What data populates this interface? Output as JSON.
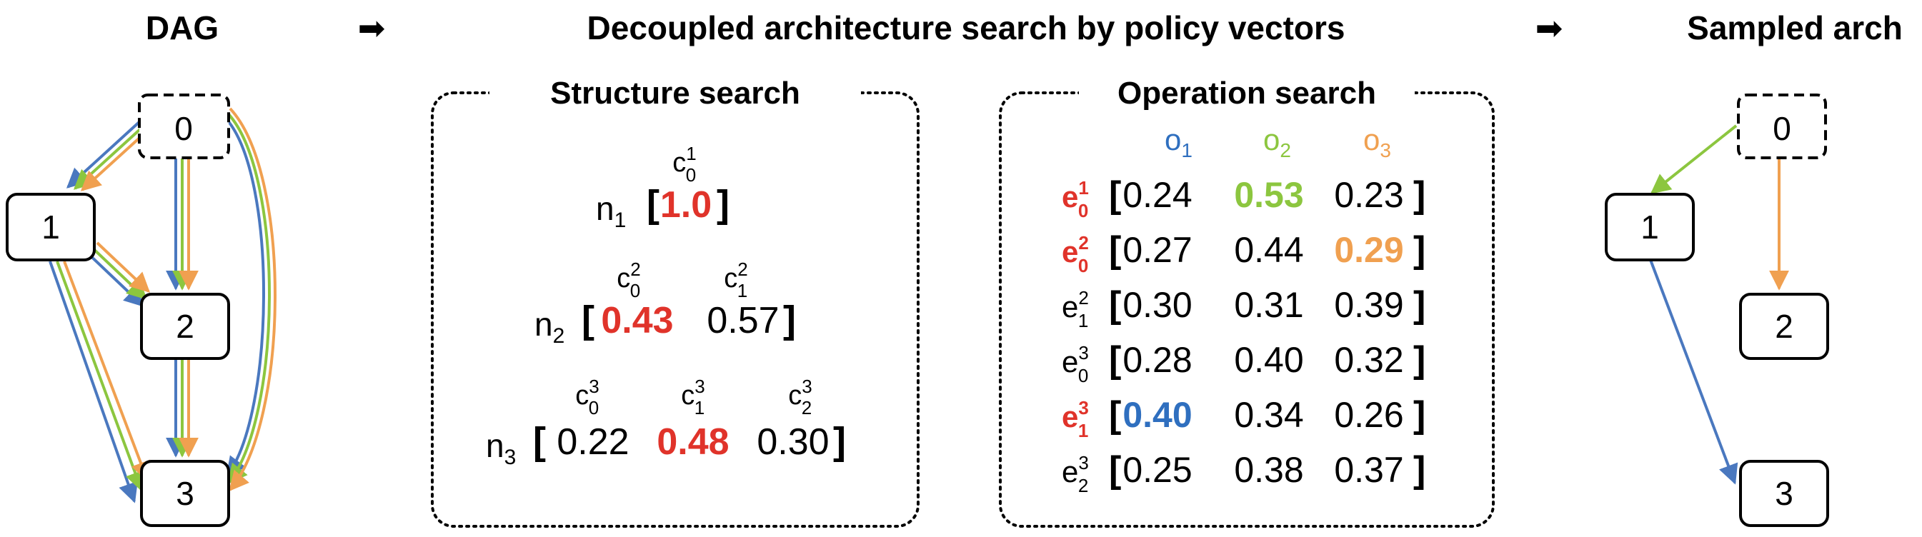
{
  "headers": {
    "dag": "DAG",
    "main": "Decoupled architecture search by policy vectors",
    "sampled": "Sampled arch",
    "arrow": "➡"
  },
  "colors": {
    "blue": "#4a78bf",
    "green": "#8cc63f",
    "orange": "#f0a050",
    "red": "#e0332a",
    "op_blue": "#2f6fbf",
    "op_green": "#8cc63f",
    "op_orange": "#f0a050"
  },
  "dag": {
    "nodes": [
      "0",
      "1",
      "2",
      "3"
    ]
  },
  "structure": {
    "title": "Structure search",
    "rows": [
      {
        "node": "n",
        "node_sub": "1",
        "cols": [
          {
            "c": "c",
            "sub": "0",
            "sup": "1"
          }
        ],
        "values": [
          {
            "v": "1.0",
            "hl": "red"
          }
        ]
      },
      {
        "node": "n",
        "node_sub": "2",
        "cols": [
          {
            "c": "c",
            "sub": "0",
            "sup": "2"
          },
          {
            "c": "c",
            "sub": "1",
            "sup": "2"
          }
        ],
        "values": [
          {
            "v": "0.43",
            "hl": "red"
          },
          {
            "v": "0.57",
            "hl": ""
          }
        ]
      },
      {
        "node": "n",
        "node_sub": "3",
        "cols": [
          {
            "c": "c",
            "sub": "0",
            "sup": "3"
          },
          {
            "c": "c",
            "sub": "1",
            "sup": "3"
          },
          {
            "c": "c",
            "sub": "2",
            "sup": "3"
          }
        ],
        "values": [
          {
            "v": "0.22",
            "hl": ""
          },
          {
            "v": "0.48",
            "hl": "red"
          },
          {
            "v": "0.30",
            "hl": ""
          }
        ]
      }
    ]
  },
  "operation": {
    "title": "Operation search",
    "ops": [
      {
        "o": "o",
        "sub": "1",
        "color": "blue"
      },
      {
        "o": "o",
        "sub": "2",
        "color": "green"
      },
      {
        "o": "o",
        "sub": "3",
        "color": "orange"
      }
    ],
    "rows": [
      {
        "e": "e",
        "sup": "1",
        "sub": "0",
        "red": true,
        "values": [
          "0.24",
          "0.53",
          "0.23"
        ],
        "hl": [
          null,
          "green",
          null
        ]
      },
      {
        "e": "e",
        "sup": "2",
        "sub": "0",
        "red": true,
        "values": [
          "0.27",
          "0.44",
          "0.29"
        ],
        "hl": [
          null,
          null,
          "orange"
        ]
      },
      {
        "e": "e",
        "sup": "2",
        "sub": "1",
        "red": false,
        "values": [
          "0.30",
          "0.31",
          "0.39"
        ],
        "hl": [
          null,
          null,
          null
        ]
      },
      {
        "e": "e",
        "sup": "3",
        "sub": "0",
        "red": false,
        "values": [
          "0.28",
          "0.40",
          "0.32"
        ],
        "hl": [
          null,
          null,
          null
        ]
      },
      {
        "e": "e",
        "sup": "3",
        "sub": "1",
        "red": true,
        "values": [
          "0.40",
          "0.34",
          "0.26"
        ],
        "hl": [
          "blue",
          null,
          null
        ]
      },
      {
        "e": "e",
        "sup": "3",
        "sub": "2",
        "red": false,
        "values": [
          "0.25",
          "0.38",
          "0.37"
        ],
        "hl": [
          null,
          null,
          null
        ]
      }
    ]
  },
  "sampled": {
    "nodes": [
      "0",
      "1",
      "2",
      "3"
    ]
  }
}
